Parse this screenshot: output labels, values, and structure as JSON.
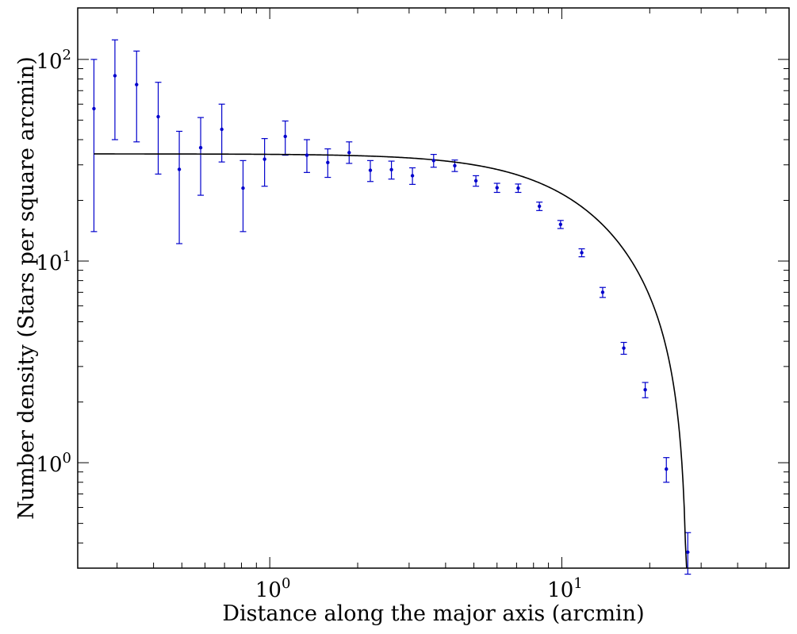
{
  "chart_data": {
    "type": "scatter",
    "xlabel": "Distance along the major axis (arcmin)",
    "ylabel": "Number density (Stars per square arcmin)",
    "xscale": "log",
    "yscale": "log",
    "xlim": [
      0.22,
      60
    ],
    "ylim": [
      0.3,
      180
    ],
    "x_ticks": [
      {
        "base": "10",
        "exp": "0",
        "value": 1
      },
      {
        "base": "10",
        "exp": "1",
        "value": 10
      }
    ],
    "y_ticks": [
      {
        "base": "10",
        "exp": "0",
        "value": 1
      },
      {
        "base": "10",
        "exp": "1",
        "value": 10
      },
      {
        "base": "10",
        "exp": "2",
        "value": 100
      }
    ],
    "grid": false,
    "colors": {
      "points": "#0000cc",
      "fit": "#000000"
    },
    "series": [
      {
        "type": "errorbar",
        "points": [
          {
            "x": 0.25,
            "y": 57,
            "lo": 14,
            "hi": 100
          },
          {
            "x": 0.295,
            "y": 83,
            "lo": 40,
            "hi": 125
          },
          {
            "x": 0.35,
            "y": 75,
            "lo": 39,
            "hi": 110
          },
          {
            "x": 0.415,
            "y": 52,
            "lo": 27,
            "hi": 77
          },
          {
            "x": 0.49,
            "y": 28.5,
            "lo": 12.2,
            "hi": 44
          },
          {
            "x": 0.58,
            "y": 36.5,
            "lo": 21.2,
            "hi": 51.5
          },
          {
            "x": 0.685,
            "y": 45,
            "lo": 31,
            "hi": 60
          },
          {
            "x": 0.81,
            "y": 23,
            "lo": 14,
            "hi": 31.5
          },
          {
            "x": 0.96,
            "y": 32,
            "lo": 23.5,
            "hi": 40.5
          },
          {
            "x": 1.13,
            "y": 41.5,
            "lo": 33.5,
            "hi": 49.5
          },
          {
            "x": 1.34,
            "y": 33.5,
            "lo": 27.5,
            "hi": 40
          },
          {
            "x": 1.58,
            "y": 30.8,
            "lo": 26,
            "hi": 36
          },
          {
            "x": 1.87,
            "y": 34.5,
            "lo": 30.5,
            "hi": 39
          },
          {
            "x": 2.21,
            "y": 28.2,
            "lo": 24.8,
            "hi": 31.5
          },
          {
            "x": 2.61,
            "y": 28.4,
            "lo": 25.5,
            "hi": 31.3
          },
          {
            "x": 3.08,
            "y": 26.5,
            "lo": 24,
            "hi": 29
          },
          {
            "x": 3.64,
            "y": 31.5,
            "lo": 29.2,
            "hi": 33.8
          },
          {
            "x": 4.3,
            "y": 29.7,
            "lo": 27.8,
            "hi": 31.7
          },
          {
            "x": 5.08,
            "y": 25,
            "lo": 23.5,
            "hi": 26.5
          },
          {
            "x": 6.0,
            "y": 23.1,
            "lo": 21.9,
            "hi": 24.3
          },
          {
            "x": 7.09,
            "y": 23,
            "lo": 21.9,
            "hi": 24.1
          },
          {
            "x": 8.38,
            "y": 18.7,
            "lo": 17.8,
            "hi": 19.6
          },
          {
            "x": 9.9,
            "y": 15.2,
            "lo": 14.5,
            "hi": 15.9
          },
          {
            "x": 11.7,
            "y": 11,
            "lo": 10.5,
            "hi": 11.5
          },
          {
            "x": 13.8,
            "y": 7.0,
            "lo": 6.6,
            "hi": 7.4
          },
          {
            "x": 16.3,
            "y": 3.7,
            "lo": 3.45,
            "hi": 3.95
          },
          {
            "x": 19.3,
            "y": 2.3,
            "lo": 2.1,
            "hi": 2.5
          },
          {
            "x": 22.8,
            "y": 0.93,
            "lo": 0.8,
            "hi": 1.06
          },
          {
            "x": 27.0,
            "y": 0.36,
            "lo": 0.28,
            "hi": 0.45
          }
        ]
      },
      {
        "type": "line",
        "model": "king",
        "params": {
          "n0": 34,
          "rc": 13,
          "rt": 27
        }
      }
    ]
  }
}
